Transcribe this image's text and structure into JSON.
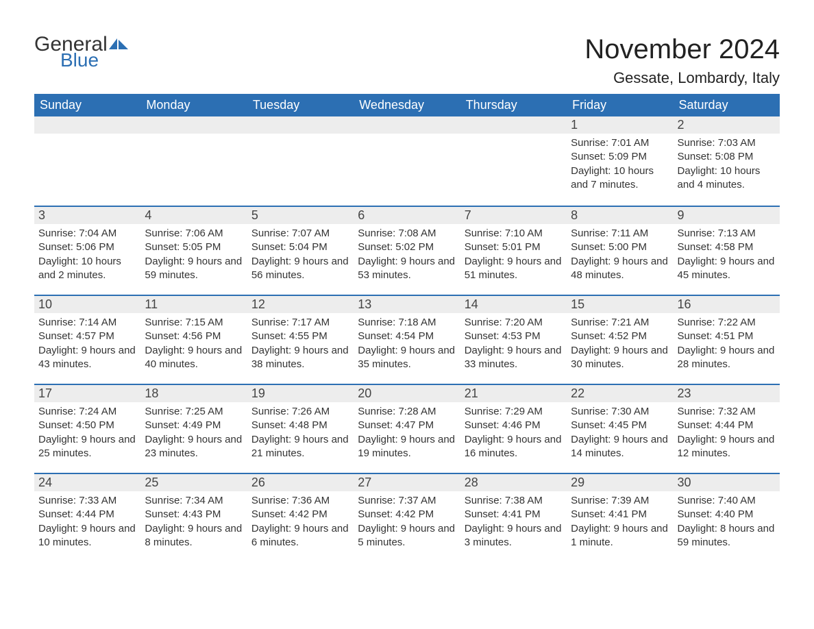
{
  "brand": {
    "part1": "General",
    "part2": "Blue",
    "icon_color": "#2c6fb3"
  },
  "title": "November 2024",
  "location": "Gessate, Lombardy, Italy",
  "colors": {
    "header_bg": "#2c6fb3",
    "header_text": "#ffffff",
    "daynum_bg": "#ededed",
    "row_border": "#2c6fb3",
    "body_text": "#333333",
    "page_bg": "#ffffff"
  },
  "day_headers": [
    "Sunday",
    "Monday",
    "Tuesday",
    "Wednesday",
    "Thursday",
    "Friday",
    "Saturday"
  ],
  "weeks": [
    [
      null,
      null,
      null,
      null,
      null,
      {
        "n": "1",
        "sunrise": "7:01 AM",
        "sunset": "5:09 PM",
        "daylight": "10 hours and 7 minutes."
      },
      {
        "n": "2",
        "sunrise": "7:03 AM",
        "sunset": "5:08 PM",
        "daylight": "10 hours and 4 minutes."
      }
    ],
    [
      {
        "n": "3",
        "sunrise": "7:04 AM",
        "sunset": "5:06 PM",
        "daylight": "10 hours and 2 minutes."
      },
      {
        "n": "4",
        "sunrise": "7:06 AM",
        "sunset": "5:05 PM",
        "daylight": "9 hours and 59 minutes."
      },
      {
        "n": "5",
        "sunrise": "7:07 AM",
        "sunset": "5:04 PM",
        "daylight": "9 hours and 56 minutes."
      },
      {
        "n": "6",
        "sunrise": "7:08 AM",
        "sunset": "5:02 PM",
        "daylight": "9 hours and 53 minutes."
      },
      {
        "n": "7",
        "sunrise": "7:10 AM",
        "sunset": "5:01 PM",
        "daylight": "9 hours and 51 minutes."
      },
      {
        "n": "8",
        "sunrise": "7:11 AM",
        "sunset": "5:00 PM",
        "daylight": "9 hours and 48 minutes."
      },
      {
        "n": "9",
        "sunrise": "7:13 AM",
        "sunset": "4:58 PM",
        "daylight": "9 hours and 45 minutes."
      }
    ],
    [
      {
        "n": "10",
        "sunrise": "7:14 AM",
        "sunset": "4:57 PM",
        "daylight": "9 hours and 43 minutes."
      },
      {
        "n": "11",
        "sunrise": "7:15 AM",
        "sunset": "4:56 PM",
        "daylight": "9 hours and 40 minutes."
      },
      {
        "n": "12",
        "sunrise": "7:17 AM",
        "sunset": "4:55 PM",
        "daylight": "9 hours and 38 minutes."
      },
      {
        "n": "13",
        "sunrise": "7:18 AM",
        "sunset": "4:54 PM",
        "daylight": "9 hours and 35 minutes."
      },
      {
        "n": "14",
        "sunrise": "7:20 AM",
        "sunset": "4:53 PM",
        "daylight": "9 hours and 33 minutes."
      },
      {
        "n": "15",
        "sunrise": "7:21 AM",
        "sunset": "4:52 PM",
        "daylight": "9 hours and 30 minutes."
      },
      {
        "n": "16",
        "sunrise": "7:22 AM",
        "sunset": "4:51 PM",
        "daylight": "9 hours and 28 minutes."
      }
    ],
    [
      {
        "n": "17",
        "sunrise": "7:24 AM",
        "sunset": "4:50 PM",
        "daylight": "9 hours and 25 minutes."
      },
      {
        "n": "18",
        "sunrise": "7:25 AM",
        "sunset": "4:49 PM",
        "daylight": "9 hours and 23 minutes."
      },
      {
        "n": "19",
        "sunrise": "7:26 AM",
        "sunset": "4:48 PM",
        "daylight": "9 hours and 21 minutes."
      },
      {
        "n": "20",
        "sunrise": "7:28 AM",
        "sunset": "4:47 PM",
        "daylight": "9 hours and 19 minutes."
      },
      {
        "n": "21",
        "sunrise": "7:29 AM",
        "sunset": "4:46 PM",
        "daylight": "9 hours and 16 minutes."
      },
      {
        "n": "22",
        "sunrise": "7:30 AM",
        "sunset": "4:45 PM",
        "daylight": "9 hours and 14 minutes."
      },
      {
        "n": "23",
        "sunrise": "7:32 AM",
        "sunset": "4:44 PM",
        "daylight": "9 hours and 12 minutes."
      }
    ],
    [
      {
        "n": "24",
        "sunrise": "7:33 AM",
        "sunset": "4:44 PM",
        "daylight": "9 hours and 10 minutes."
      },
      {
        "n": "25",
        "sunrise": "7:34 AM",
        "sunset": "4:43 PM",
        "daylight": "9 hours and 8 minutes."
      },
      {
        "n": "26",
        "sunrise": "7:36 AM",
        "sunset": "4:42 PM",
        "daylight": "9 hours and 6 minutes."
      },
      {
        "n": "27",
        "sunrise": "7:37 AM",
        "sunset": "4:42 PM",
        "daylight": "9 hours and 5 minutes."
      },
      {
        "n": "28",
        "sunrise": "7:38 AM",
        "sunset": "4:41 PM",
        "daylight": "9 hours and 3 minutes."
      },
      {
        "n": "29",
        "sunrise": "7:39 AM",
        "sunset": "4:41 PM",
        "daylight": "9 hours and 1 minute."
      },
      {
        "n": "30",
        "sunrise": "7:40 AM",
        "sunset": "4:40 PM",
        "daylight": "8 hours and 59 minutes."
      }
    ]
  ],
  "labels": {
    "sunrise": "Sunrise: ",
    "sunset": "Sunset: ",
    "daylight": "Daylight: "
  }
}
